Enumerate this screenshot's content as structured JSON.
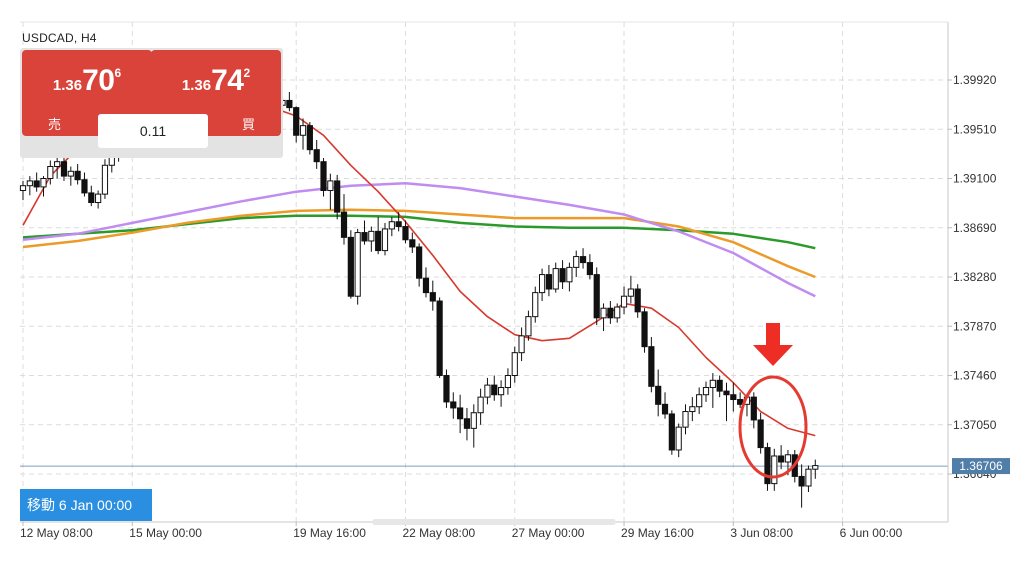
{
  "symbol": "USDCAD, H4",
  "trade_panel": {
    "sell": {
      "price_prefix": "1.36",
      "price_big": "70",
      "price_sup": "6",
      "label": "売"
    },
    "buy": {
      "price_prefix": "1.36",
      "price_big": "74",
      "price_sup": "2",
      "label": "買"
    },
    "spread": "0.11"
  },
  "navigation": {
    "label": "移動 6 Jan 00:00"
  },
  "colors": {
    "sell_buy_buttons": "#d9433a",
    "ma_red": "#d63a2e",
    "ma_purple": "#c08cf0",
    "ma_orange": "#eb9b2a",
    "ma_green": "#2a9a2a",
    "current_price_tag": "#4f7ea8",
    "highlight_circle": "#e53a30",
    "arrow": "#ee2d24",
    "nav_badge": "#2a8fe0"
  },
  "chart_data": {
    "type": "candlestick",
    "symbol": "USDCAD",
    "timeframe": "H4",
    "y_ticks": [
      "1.39920",
      "1.39510",
      "1.39100",
      "1.38690",
      "1.38280",
      "1.37870",
      "1.37460",
      "1.37050",
      "1.36640"
    ],
    "ylim": [
      1.3625,
      1.4035
    ],
    "current_price": "1.36706",
    "x_ticks": [
      "12 May 08:00",
      "15 May 00:00",
      "19 May 16:00",
      "22 May 08:00",
      "27 May 00:00",
      "29 May 16:00",
      "3 Jun 08:00",
      "6 Jun 00:00"
    ],
    "x_tick_index": [
      0,
      16,
      40,
      56,
      72,
      88,
      104,
      120
    ],
    "grid": true,
    "candles": [
      [
        0,
        1.39,
        1.3908,
        1.3892,
        1.3904
      ],
      [
        1,
        1.3904,
        1.3912,
        1.3896,
        1.3908
      ],
      [
        2,
        1.3908,
        1.3915,
        1.3899,
        1.3903
      ],
      [
        3,
        1.3903,
        1.3912,
        1.3895,
        1.391
      ],
      [
        4,
        1.391,
        1.3925,
        1.3905,
        1.392
      ],
      [
        5,
        1.392,
        1.393,
        1.391,
        1.3924
      ],
      [
        6,
        1.3924,
        1.3928,
        1.3908,
        1.3912
      ],
      [
        7,
        1.3912,
        1.392,
        1.3904,
        1.3916
      ],
      [
        8,
        1.3916,
        1.3922,
        1.3905,
        1.3909
      ],
      [
        9,
        1.3909,
        1.3915,
        1.3895,
        1.3898
      ],
      [
        10,
        1.3898,
        1.3904,
        1.3887,
        1.389
      ],
      [
        11,
        1.389,
        1.39,
        1.3885,
        1.3897
      ],
      [
        12,
        1.3897,
        1.3926,
        1.3893,
        1.3921
      ],
      [
        13,
        1.3921,
        1.3936,
        1.3915,
        1.393
      ],
      [
        14,
        1.393,
        1.3945,
        1.3924,
        1.394
      ],
      [
        15,
        1.394,
        1.3956,
        1.3934,
        1.395
      ],
      [
        16,
        1.395,
        1.3964,
        1.3944,
        1.3958
      ],
      [
        17,
        1.3958,
        1.3968,
        1.3948,
        1.3962
      ],
      [
        18,
        1.3962,
        1.3972,
        1.3954,
        1.3966
      ],
      [
        19,
        1.3966,
        1.3975,
        1.3956,
        1.396
      ],
      [
        20,
        1.396,
        1.397,
        1.3952,
        1.3965
      ],
      [
        21,
        1.3965,
        1.3974,
        1.3957,
        1.3968
      ],
      [
        22,
        1.3968,
        1.3976,
        1.396,
        1.3963
      ],
      [
        23,
        1.3963,
        1.3972,
        1.3955,
        1.3969
      ],
      [
        24,
        1.3969,
        1.3978,
        1.3961,
        1.3972
      ],
      [
        25,
        1.3972,
        1.398,
        1.3964,
        1.3966
      ],
      [
        26,
        1.3966,
        1.3976,
        1.3958,
        1.3971
      ],
      [
        27,
        1.3971,
        1.3979,
        1.3963,
        1.3974
      ],
      [
        28,
        1.3974,
        1.3982,
        1.3966,
        1.3968
      ],
      [
        29,
        1.3968,
        1.3977,
        1.396,
        1.3972
      ],
      [
        30,
        1.3972,
        1.398,
        1.3964,
        1.3975
      ],
      [
        31,
        1.3975,
        1.3983,
        1.3967,
        1.397
      ],
      [
        32,
        1.397,
        1.3978,
        1.3962,
        1.3973
      ],
      [
        33,
        1.3973,
        1.3981,
        1.3965,
        1.3976
      ],
      [
        34,
        1.3976,
        1.3984,
        1.3968,
        1.3969
      ],
      [
        35,
        1.3969,
        1.3977,
        1.3961,
        1.3974
      ],
      [
        36,
        1.3974,
        1.3982,
        1.3966,
        1.3978
      ],
      [
        37,
        1.3978,
        1.3985,
        1.3969,
        1.3971
      ],
      [
        38,
        1.3971,
        1.3979,
        1.3963,
        1.3975
      ],
      [
        39,
        1.3975,
        1.3982,
        1.3966,
        1.3969
      ],
      [
        40,
        1.3969,
        1.397,
        1.394,
        1.3946
      ],
      [
        41,
        1.3946,
        1.396,
        1.3934,
        1.3954
      ],
      [
        42,
        1.3954,
        1.3957,
        1.393,
        1.3934
      ],
      [
        43,
        1.3934,
        1.3942,
        1.3918,
        1.3924
      ],
      [
        44,
        1.3924,
        1.3927,
        1.3895,
        1.39
      ],
      [
        45,
        1.39,
        1.3914,
        1.3884,
        1.3908
      ],
      [
        46,
        1.3908,
        1.3913,
        1.3876,
        1.3882
      ],
      [
        47,
        1.3882,
        1.3897,
        1.3855,
        1.3861
      ],
      [
        48,
        1.3861,
        1.3867,
        1.381,
        1.3812
      ],
      [
        49,
        1.3812,
        1.3868,
        1.3805,
        1.3865
      ],
      [
        50,
        1.3865,
        1.3875,
        1.3855,
        1.3858
      ],
      [
        51,
        1.3858,
        1.387,
        1.3849,
        1.3866
      ],
      [
        52,
        1.3866,
        1.3878,
        1.3847,
        1.385
      ],
      [
        53,
        1.385,
        1.3873,
        1.3846,
        1.3868
      ],
      [
        54,
        1.3868,
        1.3878,
        1.3862,
        1.3874
      ],
      [
        55,
        1.3874,
        1.3882,
        1.3866,
        1.387
      ],
      [
        56,
        1.387,
        1.3875,
        1.3856,
        1.3859
      ],
      [
        57,
        1.3859,
        1.3865,
        1.3848,
        1.3853
      ],
      [
        58,
        1.3853,
        1.3856,
        1.382,
        1.3827
      ],
      [
        59,
        1.3827,
        1.3836,
        1.3811,
        1.3815
      ],
      [
        60,
        1.3815,
        1.3825,
        1.38,
        1.3808
      ],
      [
        61,
        1.3808,
        1.3811,
        1.3744,
        1.3746
      ],
      [
        62,
        1.3746,
        1.3751,
        1.3719,
        1.3724
      ],
      [
        63,
        1.3724,
        1.3732,
        1.371,
        1.3719
      ],
      [
        64,
        1.3719,
        1.373,
        1.3698,
        1.371
      ],
      [
        65,
        1.371,
        1.3719,
        1.3692,
        1.3702
      ],
      [
        66,
        1.3702,
        1.3722,
        1.3686,
        1.3715
      ],
      [
        67,
        1.3715,
        1.3735,
        1.3705,
        1.3728
      ],
      [
        68,
        1.3728,
        1.3744,
        1.3722,
        1.3738
      ],
      [
        69,
        1.3738,
        1.3746,
        1.3725,
        1.373
      ],
      [
        70,
        1.373,
        1.3742,
        1.372,
        1.3736
      ],
      [
        71,
        1.3736,
        1.3752,
        1.373,
        1.3746
      ],
      [
        72,
        1.3746,
        1.377,
        1.374,
        1.3765
      ],
      [
        73,
        1.3765,
        1.3786,
        1.3758,
        1.3779
      ],
      [
        74,
        1.3779,
        1.38,
        1.3775,
        1.3795
      ],
      [
        75,
        1.3795,
        1.382,
        1.379,
        1.3815
      ],
      [
        76,
        1.3815,
        1.3835,
        1.3808,
        1.383
      ],
      [
        77,
        1.383,
        1.3838,
        1.3812,
        1.3818
      ],
      [
        78,
        1.3818,
        1.384,
        1.3815,
        1.3835
      ],
      [
        79,
        1.3835,
        1.3842,
        1.3818,
        1.3824
      ],
      [
        80,
        1.3824,
        1.384,
        1.3816,
        1.3836
      ],
      [
        81,
        1.3836,
        1.385,
        1.3828,
        1.3845
      ],
      [
        82,
        1.3845,
        1.3852,
        1.3835,
        1.384
      ],
      [
        83,
        1.384,
        1.3847,
        1.3826,
        1.383
      ],
      [
        84,
        1.383,
        1.3836,
        1.3788,
        1.3794
      ],
      [
        85,
        1.3794,
        1.3806,
        1.3783,
        1.3802
      ],
      [
        86,
        1.3802,
        1.3808,
        1.3789,
        1.3794
      ],
      [
        87,
        1.3794,
        1.3806,
        1.379,
        1.3803
      ],
      [
        88,
        1.3803,
        1.382,
        1.3797,
        1.3812
      ],
      [
        89,
        1.3812,
        1.3829,
        1.3806,
        1.3818
      ],
      [
        90,
        1.3818,
        1.3822,
        1.3794,
        1.3799
      ],
      [
        91,
        1.3799,
        1.3802,
        1.3765,
        1.377
      ],
      [
        92,
        1.377,
        1.3778,
        1.3732,
        1.3737
      ],
      [
        93,
        1.3737,
        1.3751,
        1.3712,
        1.3722
      ],
      [
        94,
        1.3722,
        1.3732,
        1.371,
        1.3714
      ],
      [
        95,
        1.3714,
        1.3717,
        1.368,
        1.3684
      ],
      [
        96,
        1.3684,
        1.3706,
        1.3678,
        1.3703
      ],
      [
        97,
        1.3703,
        1.3722,
        1.3697,
        1.3716
      ],
      [
        98,
        1.3716,
        1.3728,
        1.3708,
        1.372
      ],
      [
        99,
        1.372,
        1.3736,
        1.3714,
        1.373
      ],
      [
        100,
        1.373,
        1.3741,
        1.3724,
        1.3736
      ],
      [
        101,
        1.3736,
        1.3748,
        1.3719,
        1.3742
      ],
      [
        102,
        1.3742,
        1.3746,
        1.3728,
        1.3733
      ],
      [
        103,
        1.3733,
        1.374,
        1.3708,
        1.373
      ],
      [
        104,
        1.373,
        1.374,
        1.3716,
        1.3726
      ],
      [
        105,
        1.3726,
        1.3732,
        1.3719,
        1.3722
      ],
      [
        106,
        1.3722,
        1.3731,
        1.3712,
        1.3728
      ],
      [
        107,
        1.3728,
        1.3732,
        1.3702,
        1.3709
      ],
      [
        108,
        1.3709,
        1.3715,
        1.3681,
        1.3686
      ],
      [
        109,
        1.3686,
        1.369,
        1.365,
        1.3656
      ],
      [
        110,
        1.3656,
        1.3685,
        1.365,
        1.3679
      ],
      [
        111,
        1.3679,
        1.3688,
        1.3668,
        1.3674
      ],
      [
        112,
        1.3674,
        1.3684,
        1.3663,
        1.368
      ],
      [
        113,
        1.368,
        1.3684,
        1.3657,
        1.3662
      ],
      [
        114,
        1.3662,
        1.3672,
        1.3636,
        1.3654
      ],
      [
        115,
        1.3654,
        1.3671,
        1.3649,
        1.3668
      ],
      [
        116,
        1.3668,
        1.3676,
        1.366,
        1.3671
      ]
    ],
    "ma_red": [
      [
        0,
        1.3871
      ],
      [
        4,
        1.3912
      ],
      [
        8,
        1.3935
      ],
      [
        12,
        1.395
      ],
      [
        16,
        1.3962
      ],
      [
        20,
        1.3968
      ],
      [
        24,
        1.397
      ],
      [
        28,
        1.3972
      ],
      [
        32,
        1.3972
      ],
      [
        36,
        1.397
      ],
      [
        40,
        1.3962
      ],
      [
        44,
        1.3946
      ],
      [
        48,
        1.3921
      ],
      [
        52,
        1.3899
      ],
      [
        56,
        1.3874
      ],
      [
        60,
        1.3846
      ],
      [
        64,
        1.3816
      ],
      [
        68,
        1.3795
      ],
      [
        72,
        1.378
      ],
      [
        76,
        1.3775
      ],
      [
        80,
        1.3777
      ],
      [
        84,
        1.3791
      ],
      [
        88,
        1.3806
      ],
      [
        92,
        1.3802
      ],
      [
        96,
        1.3786
      ],
      [
        100,
        1.3761
      ],
      [
        104,
        1.374
      ],
      [
        108,
        1.3716
      ],
      [
        112,
        1.3702
      ],
      [
        116,
        1.3696
      ]
    ],
    "ma_purple": [
      [
        0,
        1.3859
      ],
      [
        8,
        1.3864
      ],
      [
        16,
        1.3873
      ],
      [
        24,
        1.3882
      ],
      [
        32,
        1.3891
      ],
      [
        40,
        1.3899
      ],
      [
        48,
        1.3904
      ],
      [
        56,
        1.3906
      ],
      [
        64,
        1.3902
      ],
      [
        72,
        1.3895
      ],
      [
        80,
        1.3888
      ],
      [
        88,
        1.388
      ],
      [
        96,
        1.3866
      ],
      [
        104,
        1.3848
      ],
      [
        112,
        1.3823
      ],
      [
        116,
        1.3812
      ]
    ],
    "ma_orange": [
      [
        0,
        1.3853
      ],
      [
        8,
        1.3858
      ],
      [
        16,
        1.3865
      ],
      [
        24,
        1.3873
      ],
      [
        32,
        1.3879
      ],
      [
        40,
        1.3883
      ],
      [
        48,
        1.3884
      ],
      [
        56,
        1.3883
      ],
      [
        64,
        1.388
      ],
      [
        72,
        1.3877
      ],
      [
        80,
        1.3877
      ],
      [
        88,
        1.3877
      ],
      [
        96,
        1.387
      ],
      [
        104,
        1.3857
      ],
      [
        112,
        1.3837
      ],
      [
        116,
        1.3828
      ]
    ],
    "ma_green": [
      [
        0,
        1.3861
      ],
      [
        8,
        1.3864
      ],
      [
        16,
        1.3867
      ],
      [
        24,
        1.3872
      ],
      [
        32,
        1.3877
      ],
      [
        40,
        1.3879
      ],
      [
        48,
        1.3879
      ],
      [
        56,
        1.3878
      ],
      [
        64,
        1.3873
      ],
      [
        72,
        1.387
      ],
      [
        80,
        1.3869
      ],
      [
        88,
        1.3869
      ],
      [
        96,
        1.3867
      ],
      [
        104,
        1.3864
      ],
      [
        112,
        1.3857
      ],
      [
        116,
        1.3852
      ]
    ]
  }
}
